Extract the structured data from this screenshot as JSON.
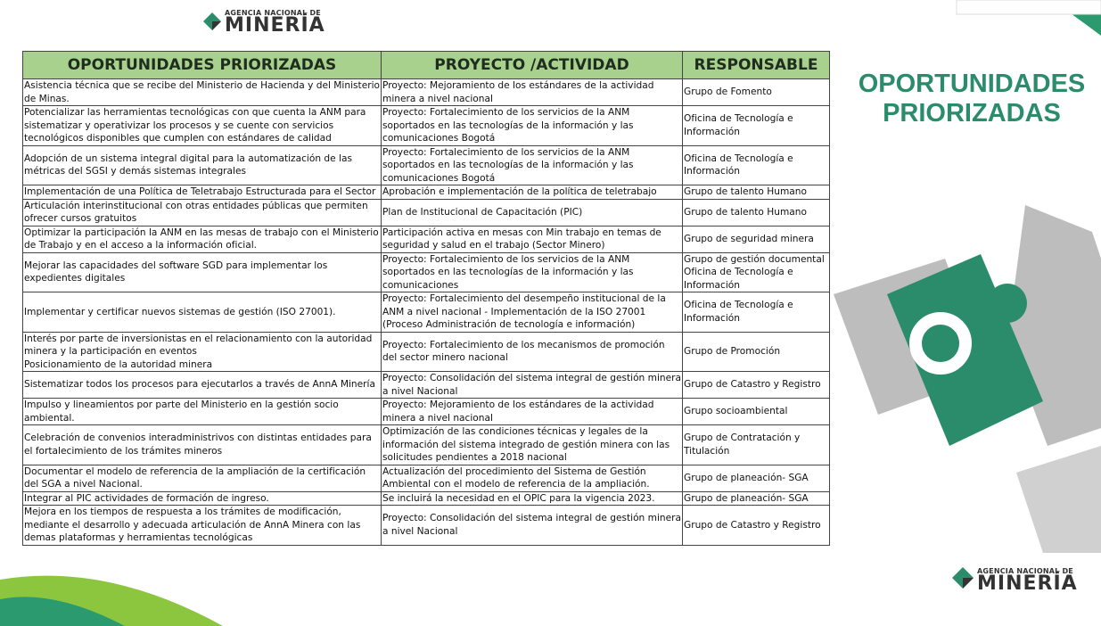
{
  "logo_top": {
    "line1": "AGENCIA NACIONAL DE",
    "line2": "MINERÍA"
  },
  "side_title": "OPORTUNIDADES PRIORIZADAS",
  "logo_bottom": {
    "line1": "AGENCIA NACIONAL DE",
    "line2": "MINERÍA"
  },
  "table": {
    "headers": [
      "OPORTUNIDADES PRIORIZADAS",
      "PROYECTO /ACTIVIDAD",
      "RESPONSABLE"
    ],
    "rows": [
      [
        "Asistencia técnica que se recibe del Ministerio de Hacienda y del Ministerio de Minas.",
        "Proyecto: Mejoramiento de los estándares de la actividad minera a nivel nacional",
        "Grupo de Fomento"
      ],
      [
        "Potencializar las herramientas tecnológicas con que cuenta la ANM para sistematizar y operativizar los procesos y se cuente con servicios tecnológicos disponibles que cumplen con estándares de calidad",
        "Proyecto: Fortalecimiento de los servicios de la ANM soportados en las tecnologías de la información y las comunicaciones Bogotá",
        "Oficina de Tecnología e Información"
      ],
      [
        "Adopción de un sistema integral digital para la automatización de las métricas del SGSI y demás sistemas integrales",
        "Proyecto: Fortalecimiento de los servicios de la ANM soportados en las tecnologías de la información y las comunicaciones Bogotá",
        "Oficina de Tecnología e Información"
      ],
      [
        "Implementación de una Política de Teletrabajo Estructurada para el Sector",
        "Aprobación e implementación de la política de teletrabajo",
        "Grupo de talento Humano"
      ],
      [
        "Articulación interinstitucional con otras entidades públicas que permiten ofrecer cursos gratuitos",
        "Plan de Institucional de Capacitación (PIC)",
        "Grupo de talento Humano"
      ],
      [
        "Optimizar la participación la ANM en las mesas de trabajo con el Ministerio de Trabajo y en el acceso a la información oficial.",
        "Participación activa en mesas con Min trabajo en temas de seguridad y salud en el trabajo (Sector Minero)",
        "Grupo de seguridad minera"
      ],
      [
        "Mejorar las capacidades del software SGD para implementar los expedientes digitales",
        " Proyecto: Fortalecimiento de los servicios de la ANM soportados en las tecnologías de la información y las comunicaciones",
        "Grupo de gestión documental\nOficina de Tecnología e Información"
      ],
      [
        "Implementar y certificar nuevos sistemas de gestión (ISO 27001).",
        "Proyecto: Fortalecimiento del desempeño institucional de la ANM a nivel nacional  - Implementación de la ISO 27001 (Proceso Administración de tecnología e información)",
        "Oficina de Tecnología e Información"
      ],
      [
        "Interés por parte de inversionistas en el relacionamiento con la autoridad minera y la participación en eventos\nPosicionamiento de la autoridad minera",
        "Proyecto: Fortalecimiento de los mecanismos de promoción del sector minero nacional",
        "Grupo de Promoción"
      ],
      [
        "Sistematizar todos los procesos para ejecutarlos a través de AnnA Minería",
        "Proyecto: Consolidación del sistema integral de gestión minera a nivel Nacional",
        "Grupo de Catastro y Registro"
      ],
      [
        "Impulso y lineamientos por parte del Ministerio en la gestión socio ambiental.",
        "Proyecto: Mejoramiento de los estándares de la actividad minera a nivel nacional",
        "Grupo socioambiental"
      ],
      [
        "Celebración de convenios interadministrivos con distintas entidades para el fortalecimiento de los trámites mineros",
        "Optimización de las condiciones técnicas y legales de la información del sistema integrado de gestión minera con las solicitudes pendientes a 2018 nacional",
        "Grupo de Contratación y Titulación"
      ],
      [
        "Documentar el modelo de referencia de la ampliación de la certificación del SGA a nivel Nacional.",
        "Actualización del procedimiento del Sistema de Gestión Ambiental con el modelo de referencia de la ampliación.",
        "Grupo de planeación- SGA"
      ],
      [
        "Integrar al PIC actividades de formación de ingreso.",
        "Se incluirá la necesidad en el OPIC para la vigencia 2023.",
        "Grupo de planeación- SGA"
      ],
      [
        "Mejora en los tiempos de respuesta a los trámites de modificación, mediante el desarrollo y adecuada articulación  de AnnA Minera con las demas plataformas y herramientas tecnológicas",
        "Proyecto: Consolidación del sistema integral de gestión minera a nivel Nacional",
        "Grupo de Catastro y Registro"
      ]
    ]
  }
}
